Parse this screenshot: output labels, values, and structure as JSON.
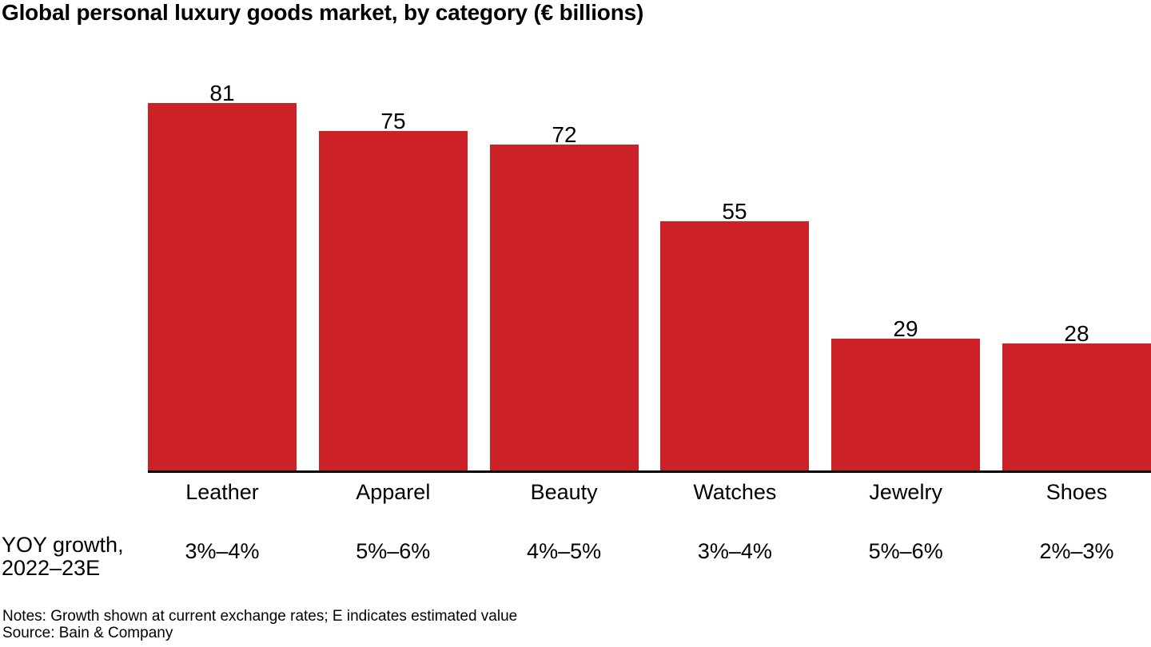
{
  "chart_data": {
    "type": "bar",
    "title": "Global personal luxury goods market, by category (€ billions)",
    "categories": [
      "Leather",
      "Apparel",
      "Beauty",
      "Watches",
      "Jewelry",
      "Shoes"
    ],
    "values": [
      81,
      75,
      72,
      55,
      29,
      28
    ],
    "bar_color": "#cc2127",
    "axis_line_color": "#000000",
    "text_color": "#000000",
    "ylim": [
      0,
      81
    ],
    "grid": false,
    "legend": false,
    "value_labels": true,
    "growth_row": {
      "label": [
        "YOY growth,",
        "2022–23E"
      ],
      "values": [
        "3%–4%",
        "5%–6%",
        "4%–5%",
        "3%–4%",
        "5%–6%",
        "2%–3%"
      ]
    },
    "notes": "Notes: Growth shown at current exchange rates; E indicates estimated value",
    "source": "Source: Bain & Company"
  }
}
